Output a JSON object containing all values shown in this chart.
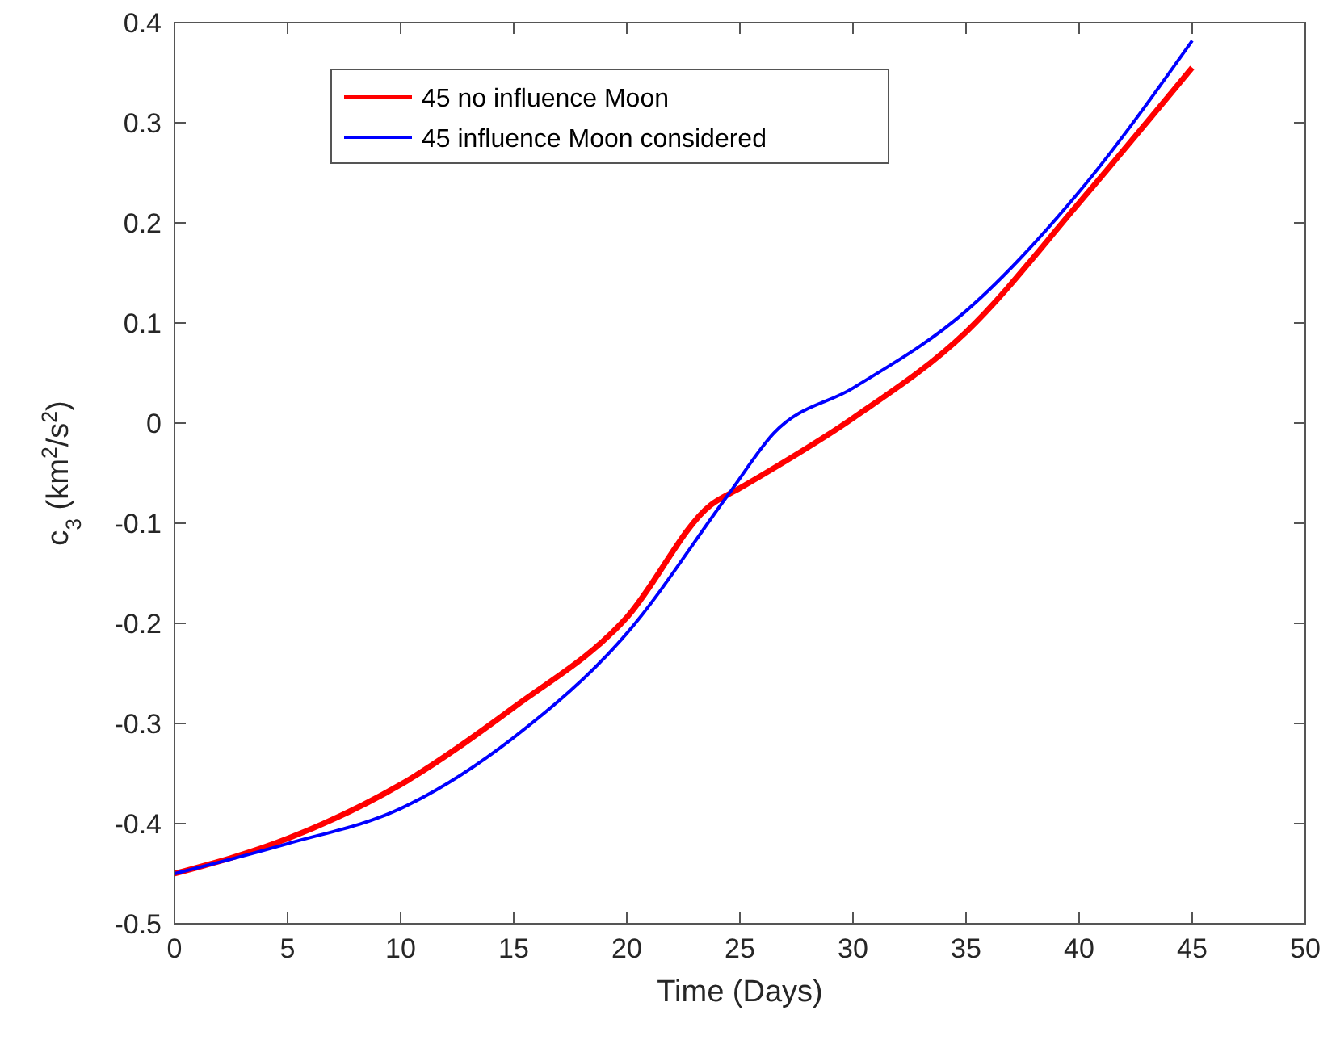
{
  "chart_data": {
    "type": "line",
    "xlabel": "Time (Days)",
    "ylabel": "c$_{3}$ (km$^{2}$/s$^{2}$)",
    "xlim": [
      0,
      50
    ],
    "ylim": [
      -0.5,
      0.4
    ],
    "xticks": [
      0,
      5,
      10,
      15,
      20,
      25,
      30,
      35,
      40,
      45,
      50
    ],
    "yticks": [
      -0.5,
      -0.4,
      -0.3,
      -0.2,
      -0.1,
      0,
      0.1,
      0.2,
      0.3,
      0.4
    ],
    "legend": "top left",
    "grid": false,
    "series": [
      {
        "name": "45 no influence Moon",
        "color": "#ff0000",
        "x": [
          0,
          5,
          10,
          15,
          20,
          23.7,
          25,
          30,
          35,
          40,
          45
        ],
        "values": [
          -0.45,
          -0.415,
          -0.361,
          -0.284,
          -0.194,
          -0.082,
          -0.065,
          0.005,
          0.091,
          0.22,
          0.355
        ]
      },
      {
        "name": "45 influence Moon considered",
        "color": "#0000ff",
        "x": [
          0,
          5,
          10,
          15,
          20,
          24.5,
          26.5,
          30,
          35,
          40,
          45
        ],
        "values": [
          -0.45,
          -0.42,
          -0.385,
          -0.314,
          -0.21,
          -0.071,
          -0.01,
          0.035,
          0.112,
          0.231,
          0.382
        ]
      }
    ]
  }
}
